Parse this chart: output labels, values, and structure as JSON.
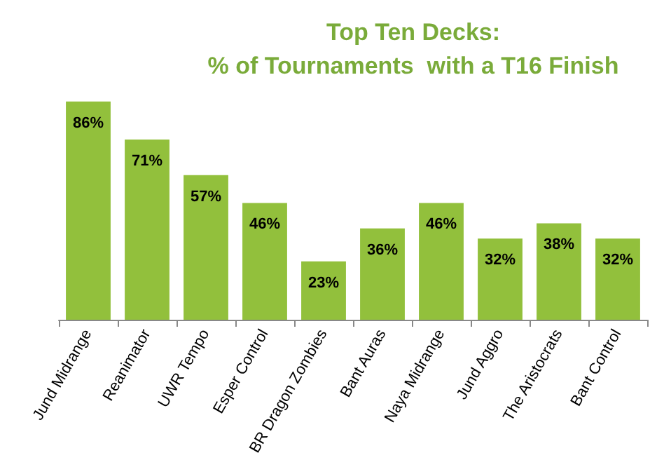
{
  "chart_data": {
    "type": "bar",
    "title": "Top Ten Decks:\n% of Tournaments  with a T16 Finish",
    "categories": [
      "Jund Midrange",
      "Reanimator",
      "UWR Tempo",
      "Esper Control",
      "BR Dragon Zombies",
      "Bant Auras",
      "Naya Midrange",
      "Jund Aggro",
      "The Aristocrats",
      "Bant Control"
    ],
    "values": [
      86,
      71,
      57,
      46,
      23,
      36,
      46,
      32,
      38,
      32
    ],
    "value_labels": [
      "86%",
      "71%",
      "57%",
      "46%",
      "23%",
      "36%",
      "46%",
      "32%",
      "38%",
      "32%"
    ],
    "color": "#92c03c"
  }
}
